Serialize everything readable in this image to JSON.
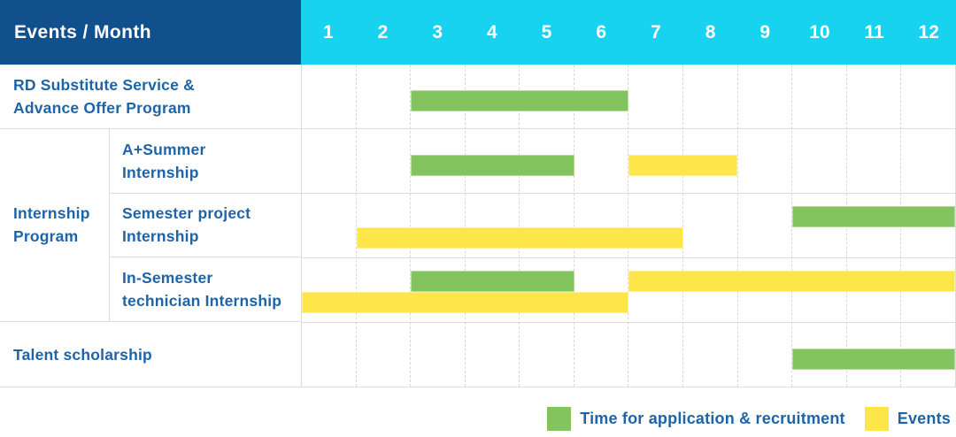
{
  "header": {
    "corner_label": "Events / Month"
  },
  "colors": {
    "header_bg": "#114f8d",
    "months_bg": "#17d3ef",
    "application_green": "#84c45e",
    "event_yellow": "#fde649",
    "label_text": "#1e64a7",
    "grid_line": "#dcdcdc"
  },
  "chart_data": {
    "type": "gantt",
    "x_axis": "Month",
    "months": [
      "1",
      "2",
      "3",
      "4",
      "5",
      "6",
      "7",
      "8",
      "9",
      "10",
      "11",
      "12"
    ],
    "x_range": [
      1,
      12
    ],
    "group": {
      "label": "Internship Program",
      "label_lines": [
        "Internship",
        "Program"
      ]
    },
    "rows": [
      {
        "id": "rd-substitute-service",
        "label": "RD Substitute Service & Advance Offer Program",
        "label_lines": [
          "RD Substitute Service &",
          "Advance Offer Program"
        ],
        "group": null,
        "lines": [
          [
            {
              "type": "application",
              "start": 3,
              "end": 6
            }
          ]
        ]
      },
      {
        "id": "a-plus-summer-internship",
        "label": "A+Summer Internship",
        "label_lines": [
          "A+Summer",
          "Internship"
        ],
        "group": "Internship Program",
        "lines": [
          [
            {
              "type": "application",
              "start": 3,
              "end": 5
            },
            {
              "type": "event",
              "start": 7,
              "end": 8
            }
          ]
        ]
      },
      {
        "id": "semester-project-internship",
        "label": "Semester project Internship",
        "label_lines": [
          "Semester project",
          "Internship"
        ],
        "group": "Internship Program",
        "lines": [
          [
            {
              "type": "application",
              "start": 10,
              "end": 12
            }
          ],
          [
            {
              "type": "event",
              "start": 2,
              "end": 7
            }
          ]
        ]
      },
      {
        "id": "in-semester-technician-internship",
        "label": "In-Semester technician Internship",
        "label_lines": [
          "In-Semester",
          "technician Internship"
        ],
        "group": "Internship Program",
        "lines": [
          [
            {
              "type": "application",
              "start": 3,
              "end": 5
            },
            {
              "type": "event",
              "start": 7,
              "end": 12
            }
          ],
          [
            {
              "type": "event",
              "start": 1,
              "end": 6
            }
          ]
        ]
      },
      {
        "id": "talent-scholarship",
        "label": "Talent scholarship",
        "label_lines": [
          "Talent scholarship"
        ],
        "group": null,
        "lines": [
          [
            {
              "type": "application",
              "start": 10,
              "end": 12
            }
          ]
        ]
      }
    ],
    "legend": [
      {
        "type": "application",
        "label": "Time for application & recruitment",
        "color": "#84c45e"
      },
      {
        "type": "event",
        "label": "Events",
        "color": "#fde649"
      }
    ]
  }
}
